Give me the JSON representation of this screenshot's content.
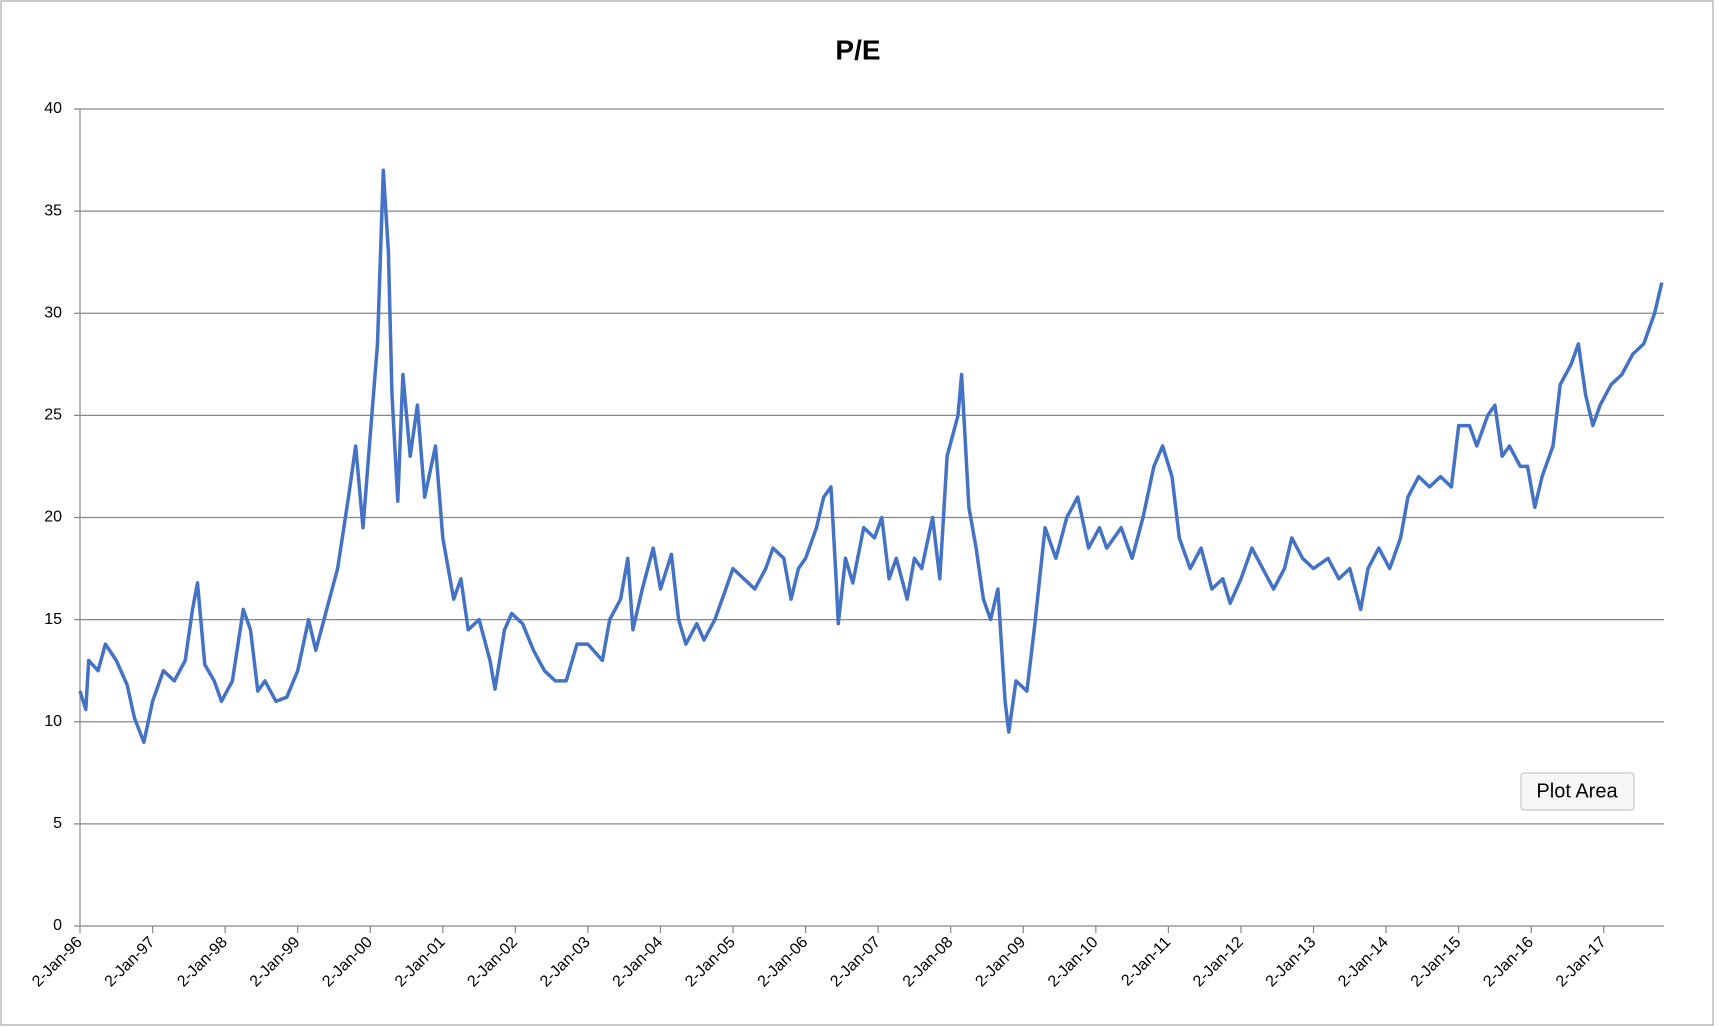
{
  "chart_data": {
    "type": "line",
    "title": "P/E",
    "annotation": "Plot Area",
    "color": "#4472c4",
    "grid": true,
    "xlim": [
      1996,
      2017.83
    ],
    "xticks": [
      {
        "value": 1996,
        "label": "2-Jan-96"
      },
      {
        "value": 1997,
        "label": "2-Jan-97"
      },
      {
        "value": 1998,
        "label": "2-Jan-98"
      },
      {
        "value": 1999,
        "label": "2-Jan-99"
      },
      {
        "value": 2000,
        "label": "2-Jan-00"
      },
      {
        "value": 2001,
        "label": "2-Jan-01"
      },
      {
        "value": 2002,
        "label": "2-Jan-02"
      },
      {
        "value": 2003,
        "label": "2-Jan-03"
      },
      {
        "value": 2004,
        "label": "2-Jan-04"
      },
      {
        "value": 2005,
        "label": "2-Jan-05"
      },
      {
        "value": 2006,
        "label": "2-Jan-06"
      },
      {
        "value": 2007,
        "label": "2-Jan-07"
      },
      {
        "value": 2008,
        "label": "2-Jan-08"
      },
      {
        "value": 2009,
        "label": "2-Jan-09"
      },
      {
        "value": 2010,
        "label": "2-Jan-10"
      },
      {
        "value": 2011,
        "label": "2-Jan-11"
      },
      {
        "value": 2012,
        "label": "2-Jan-12"
      },
      {
        "value": 2013,
        "label": "2-Jan-13"
      },
      {
        "value": 2014,
        "label": "2-Jan-14"
      },
      {
        "value": 2015,
        "label": "2-Jan-15"
      },
      {
        "value": 2016,
        "label": "2-Jan-16"
      },
      {
        "value": 2017,
        "label": "2-Jan-17"
      }
    ],
    "ylim": [
      0,
      40
    ],
    "yticks": [
      0,
      5,
      10,
      15,
      20,
      25,
      30,
      35,
      40
    ],
    "x": [
      1996.0,
      1996.08,
      1996.12,
      1996.25,
      1996.35,
      1996.5,
      1996.65,
      1996.75,
      1996.88,
      1997.0,
      1997.15,
      1997.3,
      1997.45,
      1997.55,
      1997.62,
      1997.72,
      1997.85,
      1997.95,
      1998.1,
      1998.25,
      1998.35,
      1998.45,
      1998.55,
      1998.7,
      1998.85,
      1999.0,
      1999.15,
      1999.25,
      1999.4,
      1999.55,
      1999.7,
      1999.8,
      1999.9,
      2000.0,
      2000.1,
      2000.18,
      2000.25,
      2000.3,
      2000.38,
      2000.45,
      2000.55,
      2000.65,
      2000.75,
      2000.9,
      2001.0,
      2001.15,
      2001.25,
      2001.35,
      2001.5,
      2001.65,
      2001.72,
      2001.85,
      2001.95,
      2002.1,
      2002.25,
      2002.4,
      2002.55,
      2002.7,
      2002.85,
      2003.0,
      2003.2,
      2003.3,
      2003.45,
      2003.55,
      2003.62,
      2003.75,
      2003.9,
      2004.0,
      2004.15,
      2004.25,
      2004.35,
      2004.5,
      2004.6,
      2004.75,
      2004.9,
      2005.0,
      2005.15,
      2005.3,
      2005.45,
      2005.55,
      2005.7,
      2005.8,
      2005.9,
      2006.0,
      2006.15,
      2006.25,
      2006.35,
      2006.42,
      2006.45,
      2006.55,
      2006.65,
      2006.8,
      2006.95,
      2007.05,
      2007.15,
      2007.25,
      2007.4,
      2007.5,
      2007.6,
      2007.75,
      2007.85,
      2007.95,
      2008.1,
      2008.15,
      2008.25,
      2008.35,
      2008.45,
      2008.55,
      2008.65,
      2008.75,
      2008.8,
      2008.9,
      2009.05,
      2009.15,
      2009.3,
      2009.45,
      2009.6,
      2009.75,
      2009.9,
      2010.05,
      2010.15,
      2010.35,
      2010.5,
      2010.65,
      2010.8,
      2010.92,
      2011.05,
      2011.15,
      2011.3,
      2011.45,
      2011.6,
      2011.75,
      2011.85,
      2012.0,
      2012.15,
      2012.3,
      2012.45,
      2012.6,
      2012.7,
      2012.85,
      2013.0,
      2013.2,
      2013.35,
      2013.5,
      2013.65,
      2013.75,
      2013.9,
      2014.05,
      2014.2,
      2014.3,
      2014.45,
      2014.6,
      2014.75,
      2014.9,
      2015.0,
      2015.15,
      2015.25,
      2015.4,
      2015.5,
      2015.6,
      2015.7,
      2015.85,
      2015.95,
      2016.05,
      2016.15,
      2016.3,
      2016.4,
      2016.55,
      2016.65,
      2016.75,
      2016.85,
      2016.95,
      2017.1,
      2017.25,
      2017.4,
      2017.55,
      2017.7,
      2017.8
    ],
    "values": [
      11.5,
      10.6,
      13.0,
      12.5,
      13.8,
      13.0,
      11.8,
      10.2,
      9.0,
      11.0,
      12.5,
      12.0,
      13.0,
      15.5,
      16.8,
      12.8,
      12.0,
      11.0,
      12.0,
      15.5,
      14.5,
      11.5,
      12.0,
      11.0,
      11.2,
      12.5,
      15.0,
      13.5,
      15.5,
      17.5,
      21.0,
      23.5,
      19.5,
      24.0,
      28.5,
      37.0,
      33.0,
      26.0,
      20.8,
      27.0,
      23.0,
      25.5,
      21.0,
      23.5,
      19.0,
      16.0,
      17.0,
      14.5,
      15.0,
      13.0,
      11.6,
      14.5,
      15.3,
      14.8,
      13.5,
      12.5,
      12.0,
      12.0,
      13.8,
      13.8,
      13.0,
      15.0,
      16.0,
      18.0,
      14.5,
      16.5,
      18.5,
      16.5,
      18.2,
      15.0,
      13.8,
      14.8,
      14.0,
      15.0,
      16.5,
      17.5,
      17.0,
      16.5,
      17.5,
      18.5,
      18.0,
      16.0,
      17.5,
      18.0,
      19.5,
      21.0,
      21.5,
      17.0,
      14.8,
      18.0,
      16.8,
      19.5,
      19.0,
      20.0,
      17.0,
      18.0,
      16.0,
      18.0,
      17.5,
      20.0,
      17.0,
      23.0,
      25.0,
      27.0,
      20.5,
      18.5,
      16.0,
      15.0,
      16.5,
      11.0,
      9.5,
      12.0,
      11.5,
      14.5,
      19.5,
      18.0,
      20.0,
      21.0,
      18.5,
      19.5,
      18.5,
      19.5,
      18.0,
      20.0,
      22.5,
      23.5,
      22.0,
      19.0,
      17.5,
      18.5,
      16.5,
      17.0,
      15.8,
      17.0,
      18.5,
      17.5,
      16.5,
      17.5,
      19.0,
      18.0,
      17.5,
      18.0,
      17.0,
      17.5,
      15.5,
      17.5,
      18.5,
      17.5,
      19.0,
      21.0,
      22.0,
      21.5,
      22.0,
      21.5,
      24.5,
      24.5,
      23.5,
      25.0,
      25.5,
      23.0,
      23.5,
      22.5,
      22.5,
      20.5,
      22.0,
      23.5,
      26.5,
      27.5,
      28.5,
      26.0,
      24.5,
      25.5,
      26.5,
      27.0,
      28.0,
      28.5,
      30.0,
      31.5
    ]
  }
}
